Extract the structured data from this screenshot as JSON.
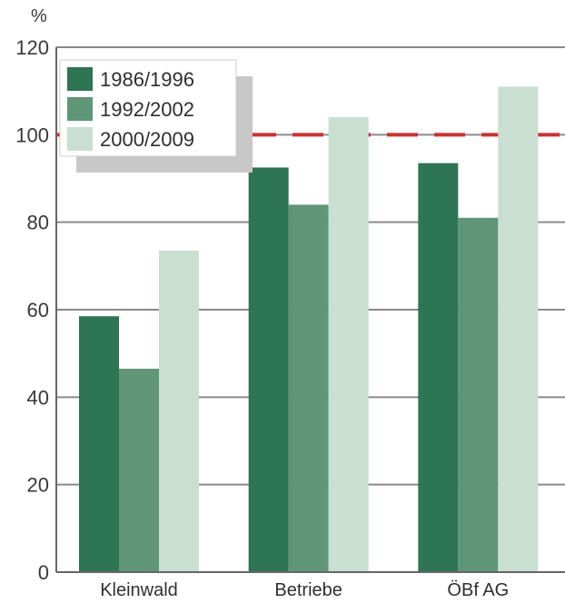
{
  "chart_data": {
    "type": "bar",
    "ylabel": "%",
    "ylim": [
      0,
      120
    ],
    "yticks": [
      0,
      20,
      40,
      60,
      80,
      100,
      120
    ],
    "grid": true,
    "legend_position": "top-left",
    "reference_line": {
      "value": 100,
      "color": "#d32f2f",
      "style": "dashed"
    },
    "categories": [
      "Kleinwald",
      "Betriebe",
      "ÖBf AG"
    ],
    "series": [
      {
        "name": "1986/1996",
        "color": "#2e7555",
        "values": [
          58.5,
          92.5,
          93.5
        ]
      },
      {
        "name": "1992/2002",
        "color": "#5e9677",
        "values": [
          46.5,
          84,
          81
        ]
      },
      {
        "name": "2000/2009",
        "color": "#c8dfd2",
        "values": [
          73.5,
          104,
          111
        ]
      }
    ]
  }
}
